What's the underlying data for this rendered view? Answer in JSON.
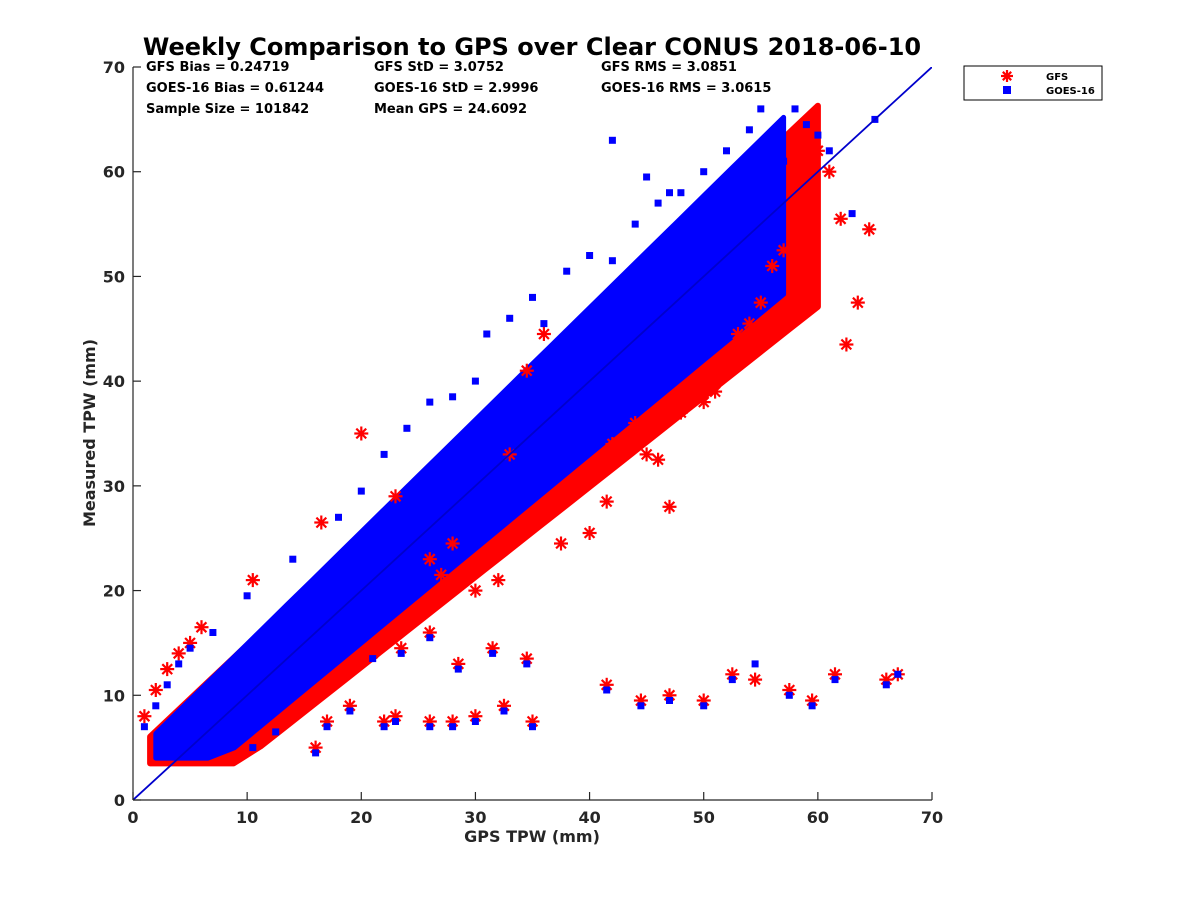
{
  "chart_data": {
    "type": "scatter",
    "title": "Weekly Comparison to GPS over Clear CONUS 2018-06-10",
    "xlabel": "GPS TPW (mm)",
    "ylabel": "Measured TPW (mm)",
    "xlim": [
      0,
      70
    ],
    "ylim": [
      0,
      70
    ],
    "xticks": [
      0,
      10,
      20,
      30,
      40,
      50,
      60,
      70
    ],
    "yticks": [
      0,
      10,
      20,
      30,
      40,
      50,
      60,
      70
    ],
    "grid": false,
    "legend": "outside-top-right",
    "reference_line": {
      "x": [
        0,
        70
      ],
      "y": [
        0,
        70
      ],
      "color": "#0000cc"
    },
    "stats": [
      "GFS Bias = 0.24719",
      "GFS StD = 3.0752",
      "GFS RMS = 3.0851",
      "GOES-16 Bias = 0.61244",
      "GOES-16 StD = 2.9996",
      "GOES-16 RMS = 3.0615",
      "Sample Size = 101842",
      "Mean GPS = 24.6092"
    ],
    "series": [
      {
        "name": "GFS",
        "marker": "asterisk",
        "color": "#ff0000",
        "x": [
          1.0,
          2.0,
          3.0,
          4.0,
          5.0,
          6.0,
          10.5,
          16.5,
          20.0,
          23.0,
          26.0,
          27.0,
          28.0,
          30.0,
          32.0,
          33.0,
          34.5,
          36.0,
          37.5,
          40.0,
          41.5,
          42.0,
          44.0,
          45.0,
          46.0,
          47.0,
          48.0,
          50.0,
          51.0,
          53.0,
          54.0,
          55.0,
          56.0,
          57.0,
          58.0,
          59.0,
          60.0,
          61.0,
          62.0,
          62.5,
          63.5,
          64.5,
          21.0,
          23.5,
          26.0,
          28.5,
          31.5,
          34.5,
          41.5,
          44.5,
          47.0,
          50.0,
          52.5,
          54.5,
          57.5,
          59.5,
          61.5,
          66.0,
          67.0,
          35.0,
          32.5,
          30.0,
          28.0,
          26.0,
          23.0,
          22.0,
          19.0,
          17.0,
          16.0,
          12.5
        ],
        "y": [
          8.0,
          10.5,
          12.5,
          14.0,
          15.0,
          16.5,
          21.0,
          26.5,
          35.0,
          29.0,
          23.0,
          21.5,
          24.5,
          20.0,
          21.0,
          33.0,
          41.0,
          44.5,
          24.5,
          25.5,
          28.5,
          34.0,
          36.0,
          33.0,
          32.5,
          28.0,
          37.0,
          38.0,
          39.0,
          44.5,
          45.5,
          47.5,
          51.0,
          52.5,
          56.0,
          53.0,
          62.0,
          60.0,
          55.5,
          43.5,
          47.5,
          54.5,
          14.0,
          14.5,
          16.0,
          13.0,
          14.5,
          13.5,
          11.0,
          9.5,
          10.0,
          9.5,
          12.0,
          11.5,
          10.5,
          9.5,
          12.0,
          11.5,
          12.0,
          7.5,
          9.0,
          8.0,
          7.5,
          7.5,
          8.0,
          7.5,
          9.0,
          7.5,
          5.0,
          7.0
        ]
      },
      {
        "name": "GOES-16",
        "marker": "square",
        "color": "#0000ff",
        "x": [
          1.0,
          2.0,
          3.0,
          4.0,
          5.0,
          7.0,
          10.0,
          14.0,
          18.0,
          20.0,
          22.0,
          24.0,
          26.0,
          28.0,
          30.0,
          31.0,
          33.0,
          35.0,
          36.0,
          38.0,
          40.0,
          42.0,
          44.0,
          46.0,
          48.0,
          50.0,
          52.0,
          53.0,
          54.0,
          55.0,
          56.0,
          57.0,
          58.0,
          59.0,
          60.0,
          61.0,
          63.0,
          65.0,
          42.0,
          45.0,
          47.0,
          21.0,
          23.5,
          26.0,
          28.5,
          31.5,
          34.5,
          41.5,
          44.5,
          47.0,
          50.0,
          52.5,
          54.5,
          57.5,
          59.5,
          61.5,
          66.0,
          67.0,
          35.0,
          32.5,
          30.0,
          28.0,
          26.0,
          23.0,
          22.0,
          19.0,
          17.0,
          16.0,
          12.5,
          10.5
        ],
        "y": [
          7.0,
          9.0,
          11.0,
          13.0,
          14.5,
          16.0,
          19.5,
          23.0,
          27.0,
          29.5,
          33.0,
          35.5,
          38.0,
          38.5,
          40.0,
          44.5,
          46.0,
          48.0,
          45.5,
          50.5,
          52.0,
          51.5,
          55.0,
          57.0,
          58.0,
          60.0,
          62.0,
          59.5,
          64.0,
          66.0,
          63.0,
          61.0,
          66.0,
          64.5,
          63.5,
          62.0,
          56.0,
          65.0,
          63.0,
          59.5,
          58.0,
          13.5,
          14.0,
          15.5,
          12.5,
          14.0,
          13.0,
          10.5,
          9.0,
          9.5,
          9.0,
          11.5,
          13.0,
          10.0,
          9.0,
          11.5,
          11.0,
          12.0,
          7.0,
          8.5,
          7.5,
          7.0,
          7.0,
          7.5,
          7.0,
          8.5,
          7.0,
          4.5,
          6.5,
          5.0
        ]
      }
    ]
  }
}
